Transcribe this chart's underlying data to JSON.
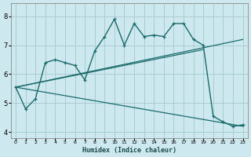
{
  "xlabel": "Humidex (Indice chaleur)",
  "bg_color": "#cde8ee",
  "grid_color": "#a8cdd5",
  "line_color": "#1a6b6b",
  "xlim": [
    -0.5,
    23.5
  ],
  "ylim": [
    3.8,
    8.45
  ],
  "yticks": [
    4,
    5,
    6,
    7,
    8
  ],
  "xticks": [
    0,
    1,
    2,
    3,
    4,
    5,
    6,
    7,
    8,
    9,
    10,
    11,
    12,
    13,
    14,
    15,
    16,
    17,
    18,
    19,
    20,
    21,
    22,
    23
  ],
  "curve1_x": [
    0,
    1,
    2,
    3,
    4,
    5,
    6,
    7,
    8,
    9,
    10,
    11,
    12,
    13,
    14,
    15,
    16,
    17,
    18,
    19,
    20,
    21,
    22,
    23
  ],
  "curve1_y": [
    5.55,
    4.8,
    5.15,
    6.4,
    6.5,
    6.4,
    6.3,
    5.8,
    6.8,
    7.3,
    7.9,
    7.0,
    7.75,
    7.3,
    7.35,
    7.3,
    7.75,
    7.75,
    7.2,
    7.0,
    4.55,
    4.35,
    4.2,
    4.25
  ],
  "line2_x": [
    0,
    23
  ],
  "line2_y": [
    5.55,
    7.2
  ],
  "line3_x": [
    0,
    19
  ],
  "line3_y": [
    5.55,
    6.85
  ],
  "line4_x": [
    0,
    23
  ],
  "line4_y": [
    5.55,
    4.2
  ]
}
